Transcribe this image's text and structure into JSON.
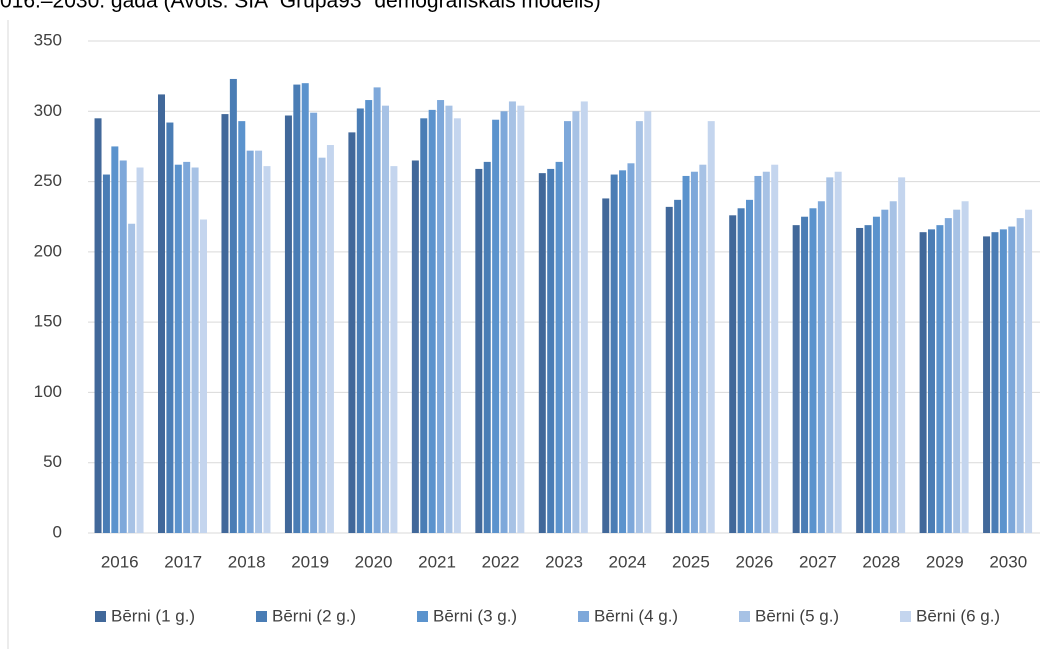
{
  "chart_data": {
    "type": "bar",
    "title": "016.–2030. gadā (Avots: SIA “Grupa93” demogrāfiskais modelis)",
    "categories": [
      "2016",
      "2017",
      "2018",
      "2019",
      "2020",
      "2021",
      "2022",
      "2023",
      "2024",
      "2025",
      "2026",
      "2027",
      "2028",
      "2029",
      "2030"
    ],
    "series": [
      {
        "name": "Bērni (1 g.)",
        "color": "#41689a",
        "values": [
          295,
          312,
          298,
          297,
          285,
          265,
          259,
          256,
          238,
          232,
          226,
          219,
          217,
          214,
          211
        ]
      },
      {
        "name": "Bērni (2 g.)",
        "color": "#4a7db5",
        "values": [
          255,
          292,
          323,
          319,
          302,
          295,
          264,
          259,
          255,
          237,
          231,
          225,
          219,
          216,
          214
        ]
      },
      {
        "name": "Bērni (3 g.)",
        "color": "#5b93cd",
        "values": [
          275,
          262,
          293,
          320,
          308,
          301,
          294,
          264,
          258,
          254,
          237,
          231,
          225,
          219,
          216
        ]
      },
      {
        "name": "Bērni (4 g.)",
        "color": "#7ea8da",
        "values": [
          265,
          264,
          272,
          299,
          317,
          308,
          300,
          293,
          263,
          257,
          254,
          236,
          230,
          224,
          218
        ]
      },
      {
        "name": "Bērni (5 g.)",
        "color": "#a7c2e5",
        "values": [
          220,
          260,
          272,
          267,
          304,
          304,
          307,
          300,
          293,
          262,
          257,
          253,
          236,
          230,
          224
        ]
      },
      {
        "name": "Bērni (6 g.)",
        "color": "#c4d5ee",
        "values": [
          260,
          223,
          261,
          276,
          261,
          295,
          304,
          307,
          300,
          293,
          262,
          257,
          253,
          236,
          230
        ]
      }
    ],
    "ylim": [
      0,
      350
    ],
    "yticks": [
      0,
      50,
      100,
      150,
      200,
      250,
      300,
      350
    ],
    "grid": true,
    "legend": "bottom"
  }
}
